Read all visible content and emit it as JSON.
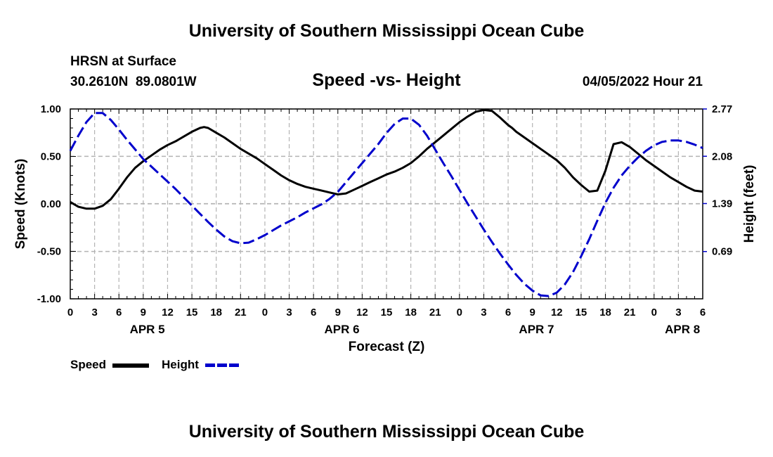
{
  "page": {
    "title_top": "University of Southern Mississippi Ocean Cube",
    "title_bottom": "University of Southern Mississippi Ocean Cube",
    "station": "HRSN at Surface",
    "coords": "30.2610N  89.0801W",
    "datetime": "04/05/2022 Hour 21"
  },
  "chart_data": {
    "type": "line",
    "title": "Speed -vs- Height",
    "xlabel": "Forecast (Z)",
    "ylabel": "Speed (Knots)",
    "y2label": "Height (feet)",
    "xlim": [
      0,
      78
    ],
    "ylim": [
      -1.0,
      1.0
    ],
    "y2lim": [
      0.0,
      2.77
    ],
    "yticks": [
      -1.0,
      -0.5,
      0.0,
      0.5,
      1.0
    ],
    "ytick_labels": [
      "-1.00",
      "-0.50",
      "0.00",
      "0.50",
      "1.00"
    ],
    "y2ticks": [
      0.69,
      1.39,
      2.08,
      2.77
    ],
    "y2tick_labels": [
      "0.69",
      "1.39",
      "2.08",
      "2.77"
    ],
    "xticks": [
      0,
      3,
      6,
      9,
      12,
      15,
      18,
      21,
      24,
      27,
      30,
      33,
      36,
      39,
      42,
      45,
      48,
      51,
      54,
      57,
      60,
      63,
      66,
      69,
      72,
      75,
      78
    ],
    "xtick_labels": [
      "0",
      "3",
      "6",
      "9",
      "12",
      "15",
      "18",
      "21",
      "0",
      "3",
      "6",
      "9",
      "12",
      "15",
      "18",
      "21",
      "0",
      "3",
      "6",
      "9",
      "12",
      "15",
      "18",
      "21",
      "0",
      "3",
      "6"
    ],
    "day_labels": [
      {
        "text": "APR 5",
        "x": 9.5
      },
      {
        "text": "APR 6",
        "x": 33.5
      },
      {
        "text": "APR 7",
        "x": 57.5
      },
      {
        "text": "APR 8",
        "x": 75.5
      }
    ],
    "grid": true,
    "legend_position": "bottom-left",
    "series": [
      {
        "name": "Speed",
        "axis": "left",
        "color": "#000000",
        "dash": "solid",
        "x": [
          0,
          1,
          2,
          3,
          4,
          5,
          6,
          7,
          8,
          9,
          10,
          11,
          12,
          13,
          14,
          15,
          16,
          16.5,
          17,
          18,
          19,
          20,
          21,
          22,
          23,
          24,
          25,
          26,
          27,
          28,
          29,
          30,
          31,
          32,
          33,
          34,
          35,
          36,
          37,
          38,
          39,
          40,
          41,
          42,
          43,
          44,
          45,
          46,
          47,
          48,
          49,
          50,
          51,
          52,
          53,
          54,
          54.5,
          55,
          56,
          57,
          58,
          59,
          60,
          61,
          62,
          63,
          64,
          65,
          66,
          67,
          68,
          69,
          70,
          71,
          72,
          73,
          74,
          75,
          76,
          77,
          78
        ],
        "y": [
          0.02,
          -0.03,
          -0.05,
          -0.05,
          -0.02,
          0.05,
          0.16,
          0.28,
          0.38,
          0.45,
          0.51,
          0.57,
          0.62,
          0.66,
          0.71,
          0.76,
          0.8,
          0.81,
          0.8,
          0.75,
          0.7,
          0.64,
          0.58,
          0.53,
          0.48,
          0.42,
          0.36,
          0.3,
          0.25,
          0.21,
          0.18,
          0.16,
          0.14,
          0.12,
          0.1,
          0.11,
          0.15,
          0.19,
          0.23,
          0.27,
          0.31,
          0.34,
          0.38,
          0.43,
          0.5,
          0.58,
          0.65,
          0.72,
          0.79,
          0.86,
          0.92,
          0.97,
          0.99,
          0.98,
          0.91,
          0.83,
          0.8,
          0.76,
          0.7,
          0.64,
          0.58,
          0.52,
          0.46,
          0.38,
          0.28,
          0.2,
          0.13,
          0.14,
          0.35,
          0.63,
          0.65,
          0.6,
          0.53,
          0.46,
          0.4,
          0.34,
          0.28,
          0.23,
          0.18,
          0.14,
          0.13
        ]
      },
      {
        "name": "Height",
        "axis": "right",
        "color": "#0000cc",
        "dash": "dashed",
        "x": [
          0,
          1,
          2,
          3,
          4,
          5,
          6,
          7,
          8,
          9,
          10,
          11,
          12,
          13,
          14,
          15,
          16,
          17,
          18,
          19,
          20,
          21,
          22,
          23,
          24,
          25,
          26,
          27,
          28,
          29,
          30,
          31,
          32,
          33,
          34,
          35,
          36,
          37,
          38,
          39,
          40,
          41,
          42,
          43,
          44,
          45,
          46,
          47,
          48,
          49,
          50,
          51,
          52,
          53,
          54,
          55,
          56,
          57,
          58,
          59,
          60,
          61,
          62,
          63,
          64,
          65,
          66,
          67,
          68,
          69,
          70,
          71,
          72,
          73,
          74,
          75,
          76,
          77,
          78
        ],
        "y": [
          2.16,
          2.38,
          2.58,
          2.71,
          2.71,
          2.61,
          2.47,
          2.32,
          2.18,
          2.04,
          1.93,
          1.82,
          1.71,
          1.6,
          1.48,
          1.36,
          1.24,
          1.12,
          1.01,
          0.91,
          0.84,
          0.81,
          0.82,
          0.87,
          0.93,
          1.0,
          1.07,
          1.13,
          1.19,
          1.26,
          1.32,
          1.38,
          1.46,
          1.56,
          1.7,
          1.84,
          1.98,
          2.12,
          2.26,
          2.42,
          2.55,
          2.63,
          2.63,
          2.54,
          2.38,
          2.18,
          1.98,
          1.79,
          1.59,
          1.39,
          1.2,
          1.01,
          0.83,
          0.66,
          0.5,
          0.35,
          0.22,
          0.12,
          0.05,
          0.04,
          0.09,
          0.21,
          0.39,
          0.62,
          0.87,
          1.14,
          1.4,
          1.62,
          1.8,
          1.94,
          2.06,
          2.16,
          2.24,
          2.29,
          2.31,
          2.31,
          2.29,
          2.25,
          2.2
        ]
      }
    ]
  }
}
